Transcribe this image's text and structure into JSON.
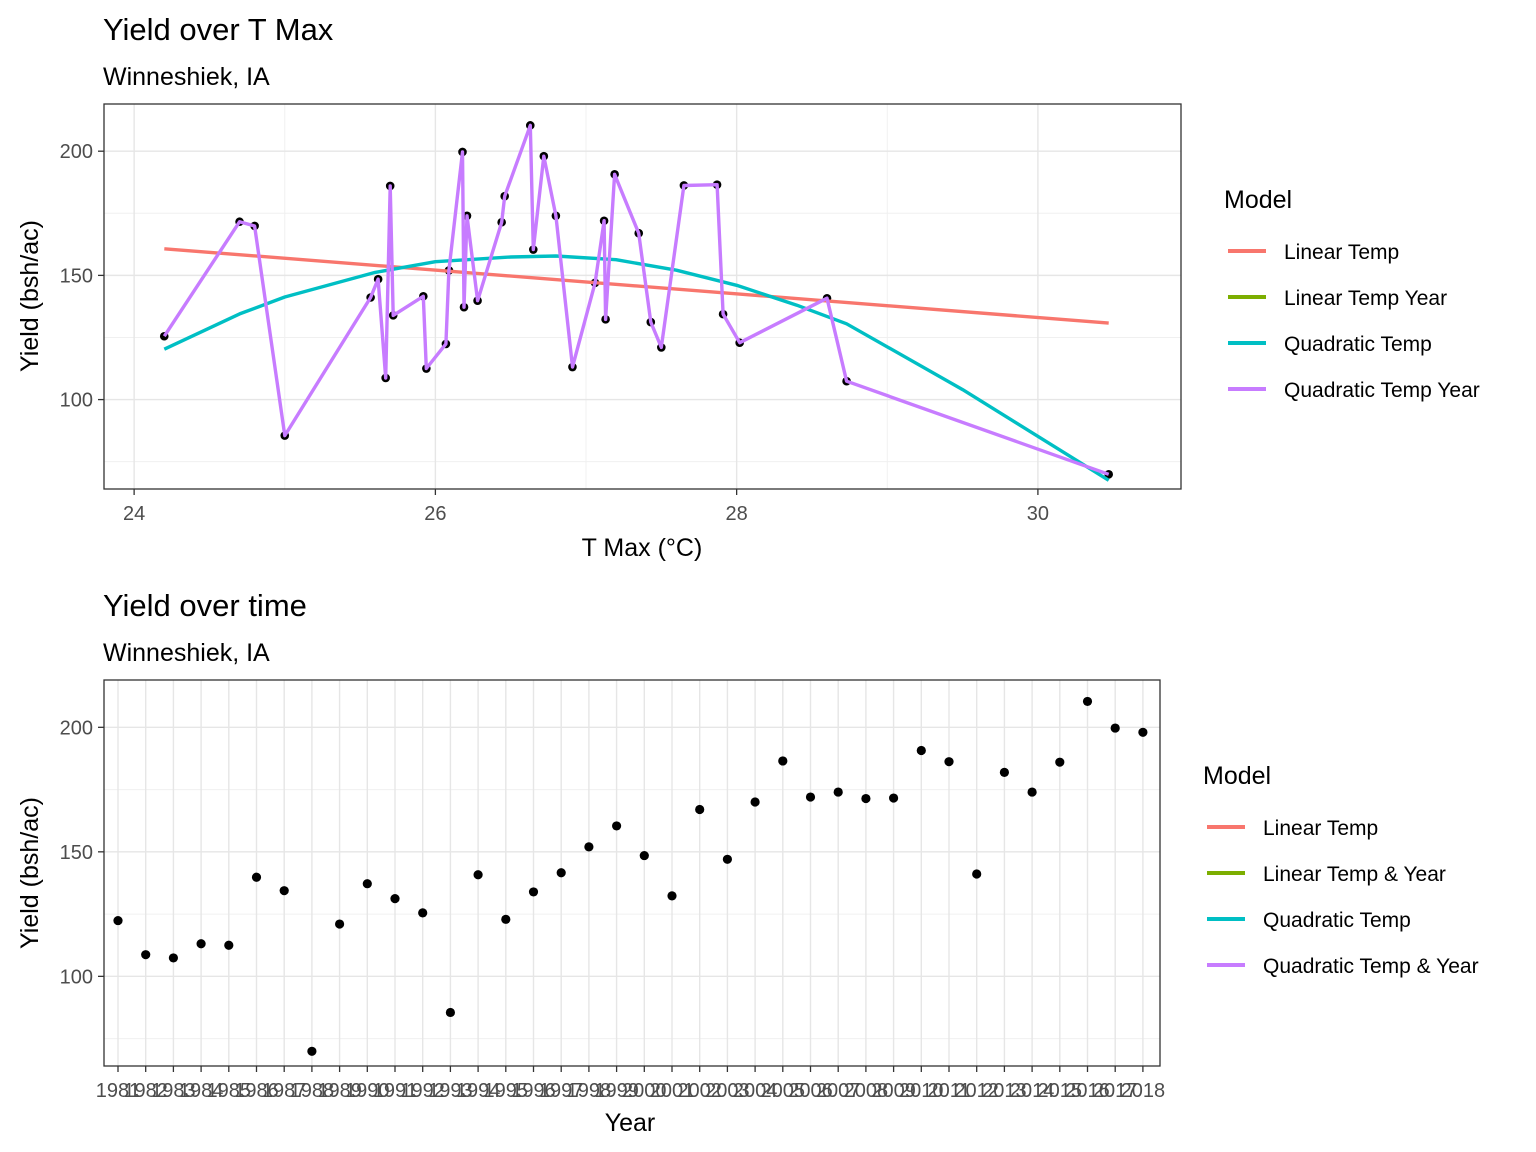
{
  "chart_data": [
    {
      "type": "scatter",
      "title": "Yield over T Max",
      "subtitle": "Winneshiek, IA",
      "xlabel": "T Max (°C)",
      "ylabel": "Yield (bsh/ac)",
      "xlim": [
        23.8,
        30.95
      ],
      "ylim": [
        64,
        219
      ],
      "x_ticks": [
        24,
        26,
        28,
        30
      ],
      "y_ticks": [
        100,
        150,
        200
      ],
      "grid": true,
      "legend_position": "right",
      "legend": {
        "title": "Model",
        "items": [
          {
            "label": "Linear Temp",
            "color": "#F8766D"
          },
          {
            "label": "Linear Temp Year",
            "color": "#7CAE00"
          },
          {
            "label": "Quadratic Temp",
            "color": "#00BFC4"
          },
          {
            "label": "Quadratic Temp Year",
            "color": "#C77CFF"
          }
        ]
      },
      "points": [
        {
          "x": 24.2,
          "y": 125.5
        },
        {
          "x": 24.7,
          "y": 171.6
        },
        {
          "x": 24.8,
          "y": 169.9
        },
        {
          "x": 25.0,
          "y": 85.5
        },
        {
          "x": 25.57,
          "y": 141.1
        },
        {
          "x": 25.62,
          "y": 148.5
        },
        {
          "x": 25.67,
          "y": 108.7
        },
        {
          "x": 25.7,
          "y": 186.0
        },
        {
          "x": 25.72,
          "y": 133.9
        },
        {
          "x": 25.92,
          "y": 141.6
        },
        {
          "x": 25.94,
          "y": 112.5
        },
        {
          "x": 26.07,
          "y": 122.4
        },
        {
          "x": 26.09,
          "y": 152.0
        },
        {
          "x": 26.18,
          "y": 199.7
        },
        {
          "x": 26.19,
          "y": 137.2
        },
        {
          "x": 26.21,
          "y": 174.0
        },
        {
          "x": 26.28,
          "y": 139.8
        },
        {
          "x": 26.44,
          "y": 171.4
        },
        {
          "x": 26.46,
          "y": 181.9
        },
        {
          "x": 26.63,
          "y": 210.4
        },
        {
          "x": 26.65,
          "y": 160.4
        },
        {
          "x": 26.72,
          "y": 198.0
        },
        {
          "x": 26.8,
          "y": 174.0
        },
        {
          "x": 26.91,
          "y": 113.1
        },
        {
          "x": 27.06,
          "y": 147.0
        },
        {
          "x": 27.12,
          "y": 172.0
        },
        {
          "x": 27.13,
          "y": 132.3
        },
        {
          "x": 27.19,
          "y": 190.7
        },
        {
          "x": 27.35,
          "y": 167.0
        },
        {
          "x": 27.43,
          "y": 131.2
        },
        {
          "x": 27.5,
          "y": 121.0
        },
        {
          "x": 27.65,
          "y": 186.2
        },
        {
          "x": 27.87,
          "y": 186.5
        },
        {
          "x": 27.91,
          "y": 134.4
        },
        {
          "x": 28.02,
          "y": 122.9
        },
        {
          "x": 28.6,
          "y": 140.8
        },
        {
          "x": 28.73,
          "y": 107.4
        },
        {
          "x": 30.47,
          "y": 69.9
        }
      ],
      "series": [
        {
          "name": "Linear Temp",
          "color": "#F8766D",
          "x": [
            24.2,
            30.47
          ],
          "y": [
            160.7,
            130.8
          ]
        },
        {
          "name": "Quadratic Temp",
          "color": "#00BFC4",
          "x": [
            24.2,
            24.7,
            25.0,
            25.6,
            26.0,
            26.5,
            26.8,
            27.2,
            27.6,
            28.0,
            28.4,
            28.73,
            29.5,
            30.47
          ],
          "y": [
            120.3,
            134.5,
            141.3,
            151.2,
            155.5,
            157.4,
            157.8,
            156.3,
            152.1,
            146.0,
            138.0,
            130.5,
            104.0,
            67.5
          ]
        },
        {
          "name": "Quadratic Temp Year",
          "color": "#C77CFF",
          "x": [
            24.2,
            24.7,
            24.8,
            25.0,
            25.57,
            25.62,
            25.67,
            25.7,
            25.72,
            25.92,
            25.94,
            26.07,
            26.09,
            26.18,
            26.19,
            26.21,
            26.28,
            26.44,
            26.46,
            26.63,
            26.65,
            26.72,
            26.8,
            26.91,
            27.06,
            27.12,
            27.13,
            27.19,
            27.35,
            27.43,
            27.5,
            27.65,
            27.87,
            27.91,
            28.02,
            28.6,
            28.73,
            30.47
          ],
          "y": [
            125.5,
            171.6,
            169.9,
            85.5,
            141.1,
            148.5,
            108.7,
            186.0,
            133.9,
            141.6,
            112.5,
            122.4,
            152.0,
            199.7,
            137.2,
            174.0,
            139.8,
            171.4,
            181.9,
            210.4,
            160.4,
            198.0,
            174.0,
            113.1,
            147.0,
            172.0,
            132.3,
            190.7,
            167.0,
            131.2,
            121.0,
            186.2,
            186.5,
            134.4,
            122.9,
            140.8,
            107.4,
            69.9
          ]
        }
      ]
    },
    {
      "type": "scatter",
      "title": "Yield over time",
      "subtitle": "Winneshiek, IA",
      "xlabel": "Year",
      "ylabel": "Yield (bsh/ac)",
      "ylim": [
        64,
        219
      ],
      "y_ticks": [
        100,
        150,
        200
      ],
      "grid": true,
      "legend_position": "right",
      "legend": {
        "title": "Model",
        "items": [
          {
            "label": "Linear Temp",
            "color": "#F8766D"
          },
          {
            "label": "Linear Temp & Year",
            "color": "#7CAE00"
          },
          {
            "label": "Quadratic Temp",
            "color": "#00BFC4"
          },
          {
            "label": "Quadratic Temp & Year",
            "color": "#C77CFF"
          }
        ]
      },
      "categories": [
        "1981",
        "1982",
        "1983",
        "1984",
        "1985",
        "1986",
        "1987",
        "1988",
        "1989",
        "1990",
        "1991",
        "1992",
        "1993",
        "1994",
        "1995",
        "1996",
        "1997",
        "1998",
        "1999",
        "2000",
        "2001",
        "2002",
        "2003",
        "2004",
        "2005",
        "2006",
        "2007",
        "2008",
        "2009",
        "2010",
        "2011",
        "2012",
        "2013",
        "2014",
        "2015",
        "2016",
        "2017",
        "2018"
      ],
      "values": [
        122.4,
        108.7,
        107.4,
        113.1,
        112.5,
        139.8,
        134.4,
        69.9,
        121.0,
        137.2,
        131.2,
        125.5,
        85.5,
        140.8,
        122.9,
        133.9,
        141.6,
        152.0,
        160.4,
        148.5,
        132.3,
        167.0,
        147.0,
        170.0,
        186.5,
        172.0,
        174.0,
        171.4,
        171.6,
        190.7,
        186.2,
        141.1,
        181.9,
        174.0,
        186.0,
        210.4,
        199.7,
        198.0
      ]
    }
  ]
}
